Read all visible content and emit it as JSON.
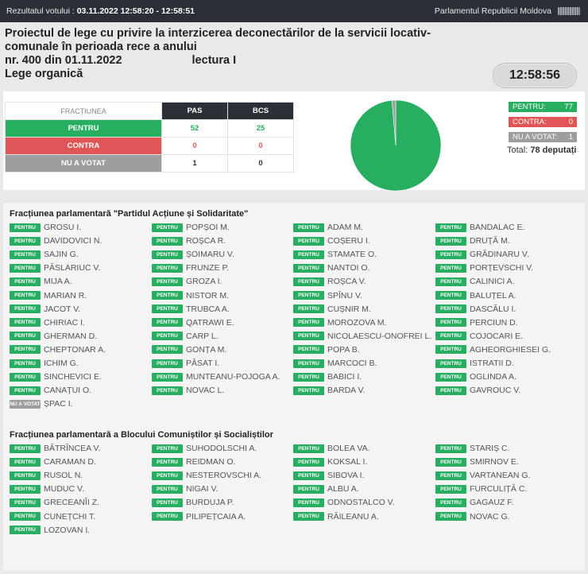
{
  "topbar": {
    "left_label": "Rezultatul votului :",
    "left_value": "03.11.2022 12:58:20 - 12:58:51",
    "right_label": "Parlamentul Republicii Moldova",
    "flag_icon": "parliament-flag-icon"
  },
  "header": {
    "title_line1": "Proiectul de lege cu privire la interzicerea deconectărilor de la servicii locativ-",
    "title_line2": "comunale în perioada rece a anului",
    "number": "nr. 400 din 01.11.2022",
    "reading": "lectura I",
    "law_type": "Lege organică",
    "clock": "12:58:56"
  },
  "tally": {
    "header_frac": "FRACȚIUNEA",
    "parties": [
      "PAS",
      "BCS"
    ],
    "rows": [
      {
        "label": "PENTRU",
        "values": [
          "52",
          "25"
        ]
      },
      {
        "label": "CONTRA",
        "values": [
          "0",
          "0"
        ]
      },
      {
        "label": "NU A VOTAT",
        "values": [
          "1",
          "0"
        ]
      }
    ]
  },
  "chart_data": {
    "type": "pie",
    "categories": [
      "PENTRU",
      "CONTRA",
      "NU A VOTAT"
    ],
    "values": [
      77,
      0,
      1
    ],
    "colors": [
      "#27ae60",
      "#e05555",
      "#9e9e9e"
    ]
  },
  "legend": {
    "pentru_label": "PENTRU:",
    "pentru_value": "77",
    "contra_label": "CONTRA:",
    "contra_value": "0",
    "nav_label": "NU A VOTAT:",
    "nav_value": "1",
    "total_label": "Total:",
    "total_value": "78 deputați"
  },
  "factions": [
    {
      "title": "Fracțiunea parlamentară \"Partidul Acțiune și Solidaritate\"",
      "deputies": [
        {
          "vote": "PENTRU",
          "name": "GROSU I."
        },
        {
          "vote": "PENTRU",
          "name": "POPȘOI M."
        },
        {
          "vote": "PENTRU",
          "name": "ADAM M."
        },
        {
          "vote": "PENTRU",
          "name": "BANDALAC E."
        },
        {
          "vote": "PENTRU",
          "name": "DAVIDOVICI N."
        },
        {
          "vote": "PENTRU",
          "name": "ROȘCA R."
        },
        {
          "vote": "PENTRU",
          "name": "COȘERU I."
        },
        {
          "vote": "PENTRU",
          "name": "DRUȚĂ M."
        },
        {
          "vote": "PENTRU",
          "name": "SAJIN G."
        },
        {
          "vote": "PENTRU",
          "name": "ȘOIMARU V."
        },
        {
          "vote": "PENTRU",
          "name": "STAMATE O."
        },
        {
          "vote": "PENTRU",
          "name": "GRĂDINARU V."
        },
        {
          "vote": "PENTRU",
          "name": "PĂSLARIUC V."
        },
        {
          "vote": "PENTRU",
          "name": "FRUNZE P."
        },
        {
          "vote": "PENTRU",
          "name": "NANTOI O."
        },
        {
          "vote": "PENTRU",
          "name": "PORȚEVSCHI V."
        },
        {
          "vote": "PENTRU",
          "name": "MIJA A."
        },
        {
          "vote": "PENTRU",
          "name": "GROZA I."
        },
        {
          "vote": "PENTRU",
          "name": "ROȘCA V."
        },
        {
          "vote": "PENTRU",
          "name": "CALINICI A."
        },
        {
          "vote": "PENTRU",
          "name": "MARIAN R."
        },
        {
          "vote": "PENTRU",
          "name": "NISTOR M."
        },
        {
          "vote": "PENTRU",
          "name": "SPÎNU V."
        },
        {
          "vote": "PENTRU",
          "name": "BALUȚEL A."
        },
        {
          "vote": "PENTRU",
          "name": "JACOT V."
        },
        {
          "vote": "PENTRU",
          "name": "TRUBCA A."
        },
        {
          "vote": "PENTRU",
          "name": "CUȘNIR M."
        },
        {
          "vote": "PENTRU",
          "name": "DASCĂLU I."
        },
        {
          "vote": "PENTRU",
          "name": "CHIRIAC I."
        },
        {
          "vote": "PENTRU",
          "name": "QATRAWI E."
        },
        {
          "vote": "PENTRU",
          "name": "MOROZOVA M."
        },
        {
          "vote": "PENTRU",
          "name": "PERCIUN D."
        },
        {
          "vote": "PENTRU",
          "name": "GHERMAN D."
        },
        {
          "vote": "PENTRU",
          "name": "CARP L."
        },
        {
          "vote": "PENTRU",
          "name": "NICOLAESCU-ONOFREI L."
        },
        {
          "vote": "PENTRU",
          "name": "COJOCARI E."
        },
        {
          "vote": "PENTRU",
          "name": "CHEPTONAR A."
        },
        {
          "vote": "PENTRU",
          "name": "GONȚA M."
        },
        {
          "vote": "PENTRU",
          "name": "POPA B."
        },
        {
          "vote": "PENTRU",
          "name": "AGHEORGHIESEI G."
        },
        {
          "vote": "PENTRU",
          "name": "ICHIM G."
        },
        {
          "vote": "PENTRU",
          "name": "PÂSAT I."
        },
        {
          "vote": "PENTRU",
          "name": "MARCOCI B."
        },
        {
          "vote": "PENTRU",
          "name": "ISTRATII D."
        },
        {
          "vote": "PENTRU",
          "name": "SINCHEVICI E."
        },
        {
          "vote": "PENTRU",
          "name": "MUNTEANU-POJOGA A."
        },
        {
          "vote": "PENTRU",
          "name": "BABICI I."
        },
        {
          "vote": "PENTRU",
          "name": "OGLINDA A."
        },
        {
          "vote": "PENTRU",
          "name": "CANAȚUI O."
        },
        {
          "vote": "PENTRU",
          "name": "NOVAC L."
        },
        {
          "vote": "PENTRU",
          "name": "BARDA V."
        },
        {
          "vote": "PENTRU",
          "name": "GAVROUC V."
        },
        {
          "vote": "NU A VOTAT",
          "name": "ȘPAC I."
        }
      ]
    },
    {
      "title": "Fracțiunea parlamentară a Blocului Comuniștilor și Socialiștilor",
      "deputies": [
        {
          "vote": "PENTRU",
          "name": "BĂTRÎNCEA V."
        },
        {
          "vote": "PENTRU",
          "name": "SUHODOLSCHI A."
        },
        {
          "vote": "PENTRU",
          "name": "BOLEA VA."
        },
        {
          "vote": "PENTRU",
          "name": "STARIȘ C."
        },
        {
          "vote": "PENTRU",
          "name": "CARAMAN D."
        },
        {
          "vote": "PENTRU",
          "name": "REIDMAN O."
        },
        {
          "vote": "PENTRU",
          "name": "KOKSAL I."
        },
        {
          "vote": "PENTRU",
          "name": "SMIRNOV E."
        },
        {
          "vote": "PENTRU",
          "name": "RUSOL N."
        },
        {
          "vote": "PENTRU",
          "name": "NESTEROVSCHI A."
        },
        {
          "vote": "PENTRU",
          "name": "SIBOVA I."
        },
        {
          "vote": "PENTRU",
          "name": "VARTANEAN G."
        },
        {
          "vote": "PENTRU",
          "name": "MUDUC V."
        },
        {
          "vote": "PENTRU",
          "name": "NIGAI V."
        },
        {
          "vote": "PENTRU",
          "name": "ALBU A."
        },
        {
          "vote": "PENTRU",
          "name": "FURCULIȚĂ C."
        },
        {
          "vote": "PENTRU",
          "name": "GRECEANÎI Z."
        },
        {
          "vote": "PENTRU",
          "name": "BURDUJA P."
        },
        {
          "vote": "PENTRU",
          "name": "ODNOSTALCO V."
        },
        {
          "vote": "PENTRU",
          "name": "GAGAUZ F."
        },
        {
          "vote": "PENTRU",
          "name": "CUNEȚCHI T."
        },
        {
          "vote": "PENTRU",
          "name": "PILIPEȚCAIA A."
        },
        {
          "vote": "PENTRU",
          "name": "RĂILEANU A."
        },
        {
          "vote": "PENTRU",
          "name": "NOVAC G."
        },
        {
          "vote": "PENTRU",
          "name": "LOZOVAN I."
        }
      ]
    }
  ]
}
